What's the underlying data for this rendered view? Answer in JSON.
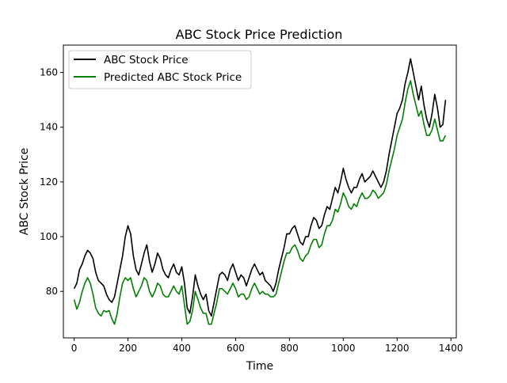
{
  "chart_data": {
    "type": "line",
    "title": "ABC Stock Price Prediction",
    "xlabel": "Time",
    "ylabel": "ABC Stock Price",
    "xlim": [
      -40,
      1420
    ],
    "ylim": [
      63,
      170
    ],
    "xticks": [
      0,
      200,
      400,
      600,
      800,
      1000,
      1200,
      1400
    ],
    "yticks": [
      80,
      100,
      120,
      140,
      160
    ],
    "grid": false,
    "legend_position": "top-left",
    "series": [
      {
        "name": "ABC Stock Price",
        "color": "#000000",
        "x": [
          0,
          10,
          20,
          30,
          40,
          50,
          60,
          70,
          80,
          90,
          100,
          110,
          120,
          130,
          140,
          150,
          160,
          170,
          180,
          190,
          200,
          210,
          220,
          230,
          240,
          250,
          260,
          270,
          280,
          290,
          300,
          310,
          320,
          330,
          340,
          350,
          360,
          370,
          380,
          390,
          400,
          410,
          420,
          430,
          440,
          450,
          460,
          470,
          480,
          490,
          500,
          510,
          520,
          530,
          540,
          550,
          560,
          570,
          580,
          590,
          600,
          610,
          620,
          630,
          640,
          650,
          660,
          670,
          680,
          690,
          700,
          710,
          720,
          730,
          740,
          750,
          760,
          770,
          780,
          790,
          800,
          810,
          820,
          830,
          840,
          850,
          860,
          870,
          880,
          890,
          900,
          910,
          920,
          930,
          940,
          950,
          960,
          970,
          980,
          990,
          1000,
          1010,
          1020,
          1030,
          1040,
          1050,
          1060,
          1070,
          1080,
          1090,
          1100,
          1110,
          1120,
          1130,
          1140,
          1150,
          1160,
          1170,
          1180,
          1190,
          1200,
          1210,
          1220,
          1230,
          1240,
          1250,
          1260,
          1270,
          1280,
          1290,
          1300,
          1310,
          1320,
          1330,
          1340,
          1350,
          1360,
          1370,
          1380
        ],
        "y": [
          81,
          83,
          88,
          90,
          93,
          95,
          94,
          92,
          87,
          84,
          83,
          82,
          79,
          77,
          76,
          78,
          83,
          88,
          93,
          100,
          104,
          101,
          93,
          88,
          86,
          90,
          94,
          97,
          91,
          87,
          90,
          94,
          92,
          88,
          86,
          85,
          88,
          90,
          87,
          86,
          89,
          83,
          74,
          72,
          78,
          86,
          82,
          79,
          77,
          79,
          73,
          71,
          76,
          81,
          86,
          87,
          86,
          84,
          88,
          90,
          87,
          84,
          86,
          85,
          82,
          85,
          88,
          90,
          88,
          86,
          87,
          84,
          83,
          82,
          80,
          83,
          88,
          92,
          96,
          101,
          101,
          103,
          104,
          101,
          98,
          97,
          100,
          100,
          104,
          107,
          106,
          103,
          104,
          108,
          111,
          110,
          114,
          118,
          116,
          120,
          125,
          121,
          118,
          116,
          118,
          118,
          121,
          123,
          120,
          121,
          122,
          124,
          122,
          120,
          118,
          120,
          124,
          130,
          135,
          140,
          145,
          147,
          150,
          156,
          160,
          165,
          160,
          155,
          150,
          155,
          148,
          143,
          140,
          145,
          152,
          147,
          140,
          141,
          150
        ]
      },
      {
        "name": "Predicted ABC Stock Price",
        "color": "#008000",
        "x": [
          0,
          10,
          20,
          30,
          40,
          50,
          60,
          70,
          80,
          90,
          100,
          110,
          120,
          130,
          140,
          150,
          160,
          170,
          180,
          190,
          200,
          210,
          220,
          230,
          240,
          250,
          260,
          270,
          280,
          290,
          300,
          310,
          320,
          330,
          340,
          350,
          360,
          370,
          380,
          390,
          400,
          410,
          420,
          430,
          440,
          450,
          460,
          470,
          480,
          490,
          500,
          510,
          520,
          530,
          540,
          550,
          560,
          570,
          580,
          590,
          600,
          610,
          620,
          630,
          640,
          650,
          660,
          670,
          680,
          690,
          700,
          710,
          720,
          730,
          740,
          750,
          760,
          770,
          780,
          790,
          800,
          810,
          820,
          830,
          840,
          850,
          860,
          870,
          880,
          890,
          900,
          910,
          920,
          930,
          940,
          950,
          960,
          970,
          980,
          990,
          1000,
          1010,
          1020,
          1030,
          1040,
          1050,
          1060,
          1070,
          1080,
          1090,
          1100,
          1110,
          1120,
          1130,
          1140,
          1150,
          1160,
          1170,
          1180,
          1190,
          1200,
          1210,
          1220,
          1230,
          1240,
          1250,
          1260,
          1270,
          1280,
          1290,
          1300,
          1310,
          1320,
          1330,
          1340,
          1350,
          1360,
          1370,
          1380
        ],
        "y": [
          77,
          73.5,
          76,
          80,
          83,
          85,
          83,
          79,
          74,
          72,
          71,
          73,
          72.5,
          73,
          70,
          68,
          72,
          78,
          83,
          85,
          84,
          85,
          81,
          78,
          80,
          82,
          85,
          84,
          80,
          78,
          80,
          83,
          82,
          79,
          78,
          78,
          80,
          82,
          80,
          79,
          82,
          75,
          68,
          69,
          73,
          80,
          77,
          74,
          72,
          72,
          68,
          68,
          72,
          76,
          81,
          81,
          80,
          79,
          81,
          83,
          81,
          78,
          79,
          79,
          77,
          78,
          81,
          83,
          81,
          79,
          80,
          79,
          79,
          78,
          78,
          79,
          83,
          87,
          91,
          94,
          94,
          96,
          97,
          95,
          92,
          91,
          93,
          94,
          97,
          99,
          99,
          96,
          97,
          101,
          104,
          104,
          106,
          110,
          109,
          112,
          116,
          114,
          111,
          110,
          112,
          111,
          114,
          116,
          114,
          114,
          115,
          117,
          116,
          114,
          115,
          116,
          119,
          124,
          128,
          132,
          137,
          140,
          143,
          149,
          154,
          157,
          152,
          148,
          144,
          146,
          141,
          137,
          137,
          139,
          143,
          139,
          135,
          135,
          137
        ]
      }
    ]
  }
}
